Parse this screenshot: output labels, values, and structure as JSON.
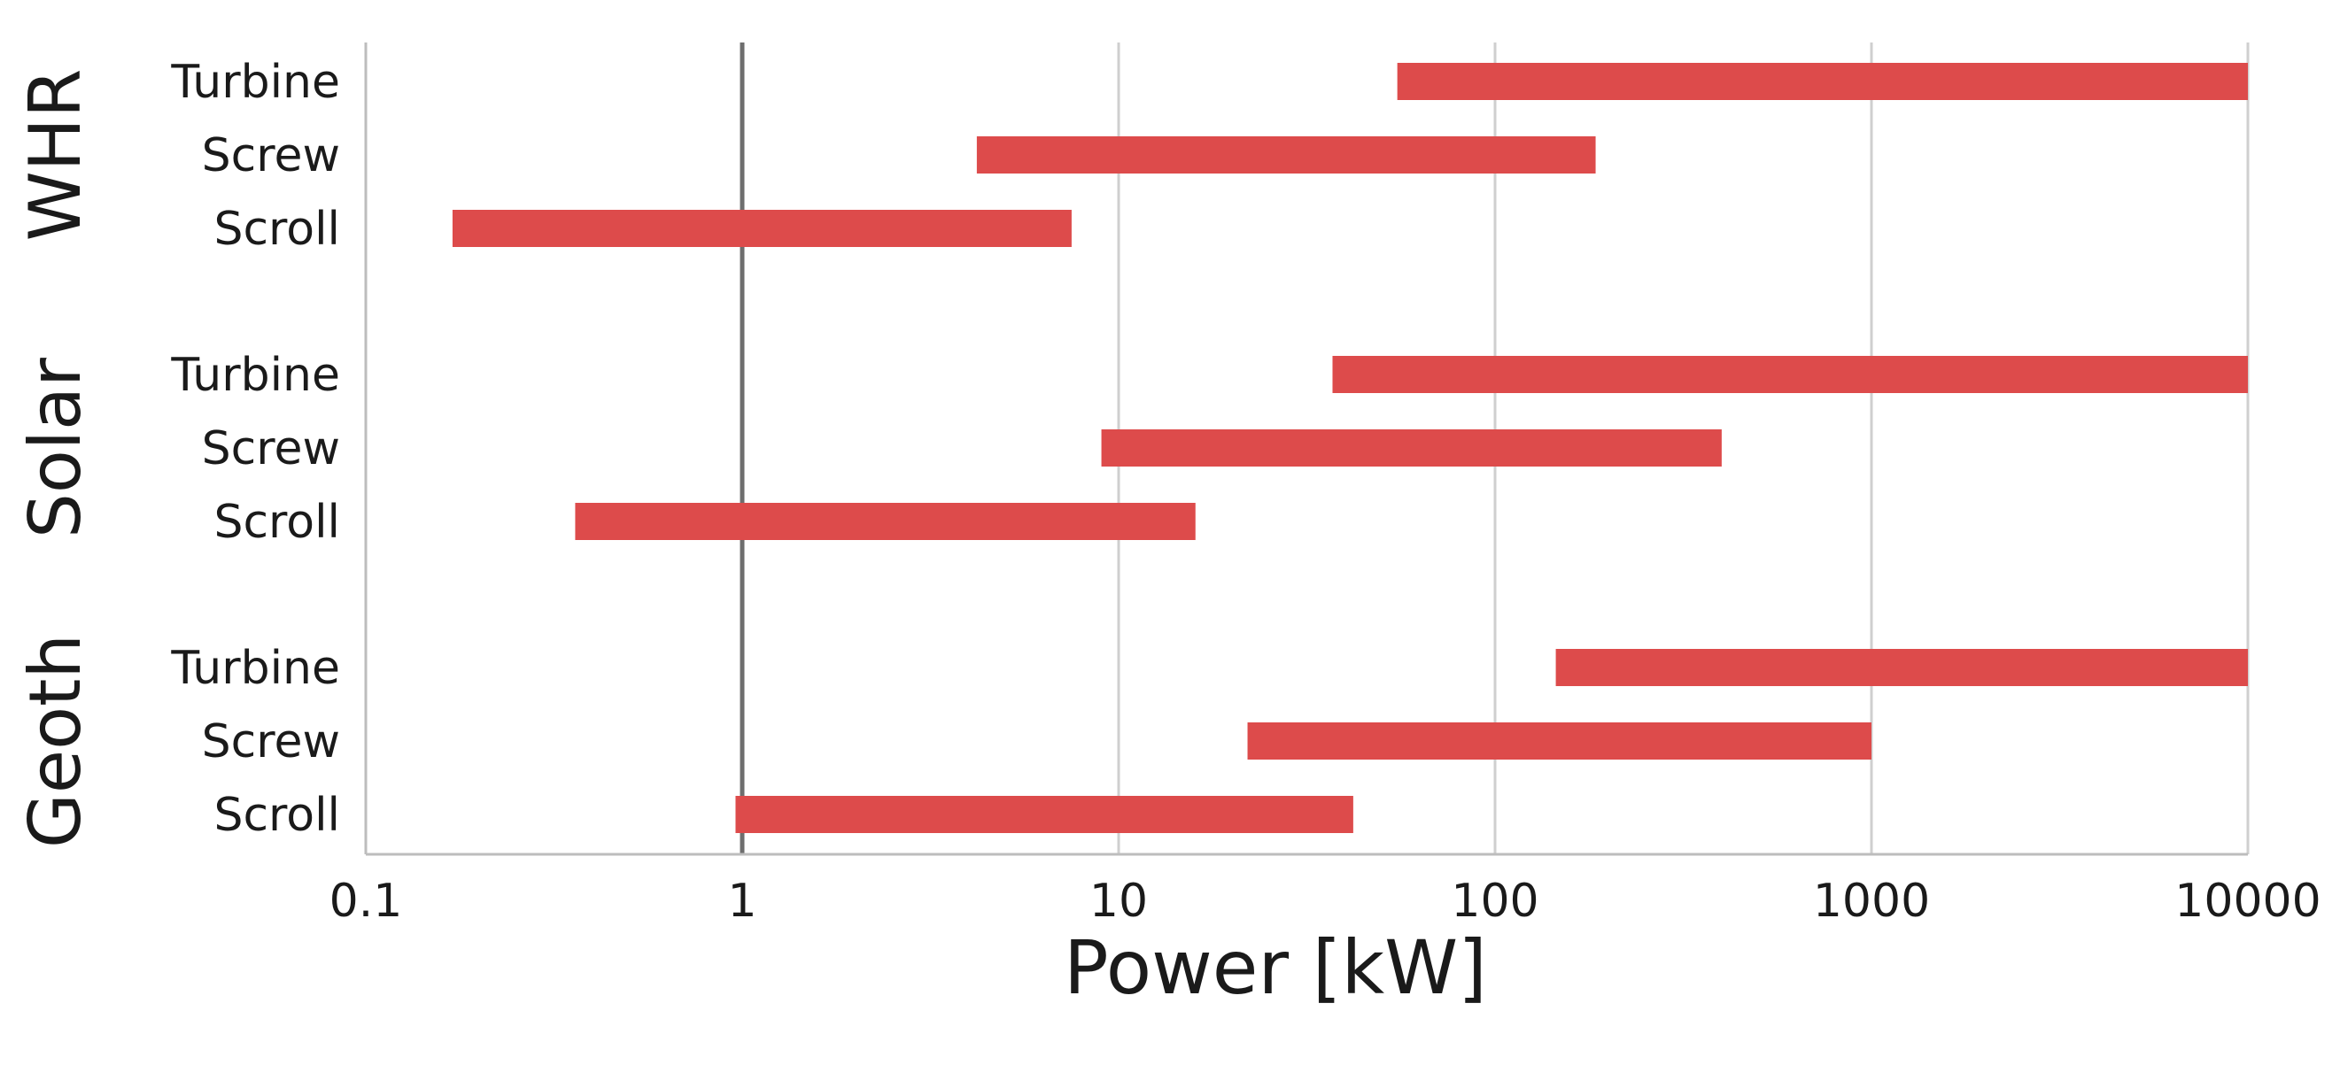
{
  "chart_data": {
    "type": "bar",
    "orientation": "horizontal",
    "bar_style": "floating-range",
    "xscale": "log",
    "xlim": [
      0.1,
      10000
    ],
    "xticks": [
      0.1,
      1,
      10,
      100,
      1000,
      10000
    ],
    "xtick_labels": [
      "0.1",
      "1",
      "10",
      "100",
      "1000",
      "10000"
    ],
    "xlabel": "Power [kW]",
    "title": "",
    "ylabel": "",
    "grid": "vertical",
    "bar_color": "#dd4b4b",
    "groups": [
      {
        "name": "WHR",
        "items": [
          {
            "label": "Turbine",
            "range": [
              55,
              10000
            ]
          },
          {
            "label": "Screw",
            "range": [
              4.2,
              185
            ]
          },
          {
            "label": "Scroll",
            "range": [
              0.17,
              7.5
            ]
          }
        ]
      },
      {
        "name": "Solar",
        "items": [
          {
            "label": "Turbine",
            "range": [
              37,
              10000
            ]
          },
          {
            "label": "Screw",
            "range": [
              9,
              400
            ]
          },
          {
            "label": "Scroll",
            "range": [
              0.36,
              16
            ]
          }
        ]
      },
      {
        "name": "Geoth",
        "items": [
          {
            "label": "Turbine",
            "range": [
              145,
              10000
            ]
          },
          {
            "label": "Screw",
            "range": [
              22,
              1000
            ]
          },
          {
            "label": "Scroll",
            "range": [
              0.96,
              42
            ]
          }
        ]
      }
    ]
  }
}
